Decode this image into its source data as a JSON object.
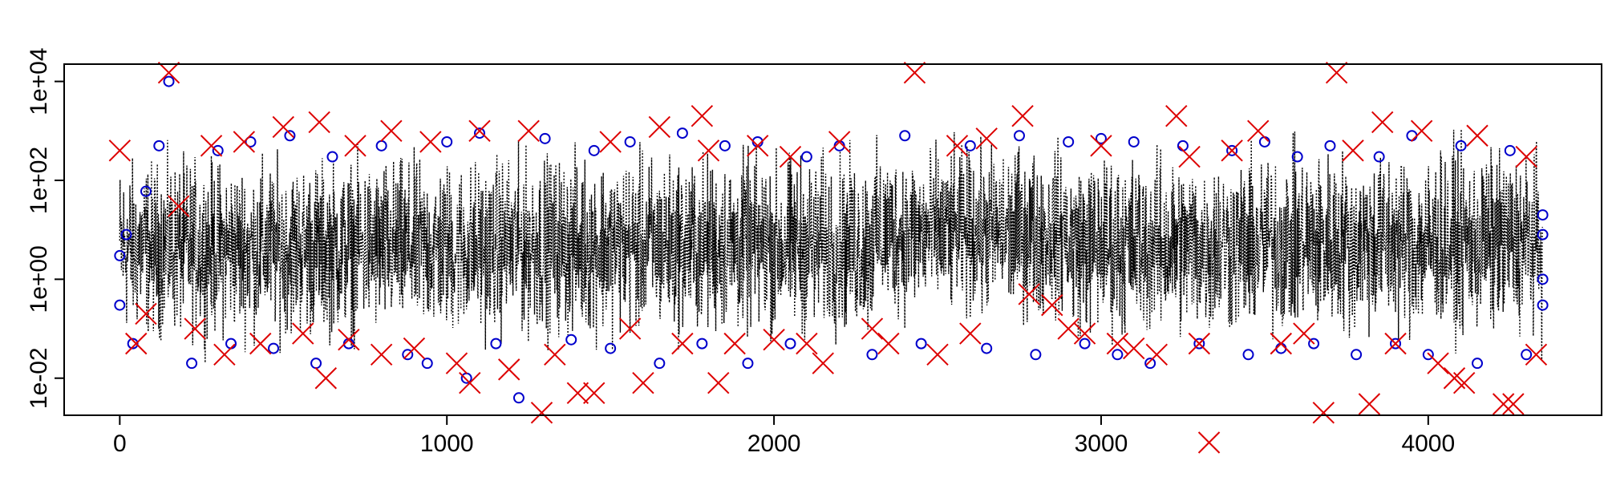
{
  "chart_data": {
    "type": "line",
    "title": "",
    "xlabel": "",
    "ylabel": "",
    "xlim": [
      -170,
      4530
    ],
    "ylim_log10": [
      -2.75,
      4.35
    ],
    "y_scale": "log",
    "grid": false,
    "legend": "none",
    "x_ticks": [
      0,
      1000,
      2000,
      3000,
      4000
    ],
    "x_tick_labels": [
      "0",
      "1000",
      "2000",
      "3000",
      "4000"
    ],
    "y_ticks": [
      0.01,
      1,
      100,
      10000
    ],
    "y_tick_labels": [
      "1e-02",
      "1e+00",
      "1e+02",
      "1e+04"
    ],
    "n_points": 4350,
    "series": [
      {
        "kind": "dotted-line",
        "color": "#000000",
        "description_segments": [
          {
            "x_range": [
              0,
              1150
            ],
            "typical_y_range": [
              0.02,
              900
            ]
          },
          {
            "x_range": [
              1150,
              2300
            ],
            "typical_y_range": [
              0.02,
              1200
            ]
          },
          {
            "x_range": [
              2300,
              2900
            ],
            "typical_y_range": [
              0.05,
              1500
            ]
          },
          {
            "x_range": [
              2900,
              3500
            ],
            "typical_y_range": [
              0.02,
              1200
            ]
          },
          {
            "x_range": [
              3500,
              4350
            ],
            "typical_y_range": [
              0.02,
              1500
            ]
          }
        ]
      },
      {
        "kind": "circle-markers",
        "color": "#0000cc",
        "points": [
          [
            0,
            3
          ],
          [
            0,
            0.3
          ],
          [
            20,
            8
          ],
          [
            40,
            0.05
          ],
          [
            80,
            60
          ],
          [
            120,
            500
          ],
          [
            150,
            10000
          ],
          [
            220,
            0.02
          ],
          [
            300,
            400
          ],
          [
            340,
            0.05
          ],
          [
            400,
            600
          ],
          [
            470,
            0.04
          ],
          [
            520,
            800
          ],
          [
            600,
            0.02
          ],
          [
            650,
            300
          ],
          [
            700,
            0.05
          ],
          [
            800,
            500
          ],
          [
            880,
            0.03
          ],
          [
            940,
            0.02
          ],
          [
            1000,
            600
          ],
          [
            1060,
            0.01
          ],
          [
            1100,
            900
          ],
          [
            1150,
            0.05
          ],
          [
            1220,
            0.004
          ],
          [
            1300,
            700
          ],
          [
            1380,
            0.06
          ],
          [
            1450,
            400
          ],
          [
            1500,
            0.04
          ],
          [
            1560,
            600
          ],
          [
            1650,
            0.02
          ],
          [
            1720,
            900
          ],
          [
            1780,
            0.05
          ],
          [
            1850,
            500
          ],
          [
            1920,
            0.02
          ],
          [
            1950,
            600
          ],
          [
            2050,
            0.05
          ],
          [
            2100,
            300
          ],
          [
            2200,
            500
          ],
          [
            2300,
            0.03
          ],
          [
            2400,
            800
          ],
          [
            2450,
            0.05
          ],
          [
            2600,
            500
          ],
          [
            2650,
            0.04
          ],
          [
            2750,
            800
          ],
          [
            2800,
            0.03
          ],
          [
            2900,
            600
          ],
          [
            2950,
            0.05
          ],
          [
            3000,
            700
          ],
          [
            3050,
            0.03
          ],
          [
            3100,
            600
          ],
          [
            3150,
            0.02
          ],
          [
            3250,
            500
          ],
          [
            3300,
            0.05
          ],
          [
            3400,
            400
          ],
          [
            3450,
            0.03
          ],
          [
            3500,
            600
          ],
          [
            3550,
            0.04
          ],
          [
            3600,
            300
          ],
          [
            3650,
            0.05
          ],
          [
            3700,
            500
          ],
          [
            3780,
            0.03
          ],
          [
            3850,
            300
          ],
          [
            3900,
            0.05
          ],
          [
            3950,
            800
          ],
          [
            4000,
            0.03
          ],
          [
            4100,
            500
          ],
          [
            4150,
            0.02
          ],
          [
            4250,
            400
          ],
          [
            4300,
            0.03
          ],
          [
            4350,
            8
          ],
          [
            4350,
            1
          ],
          [
            4350,
            20
          ],
          [
            4350,
            0.3
          ]
        ]
      },
      {
        "kind": "x-markers",
        "color": "#dd0000",
        "points": [
          [
            0,
            400
          ],
          [
            50,
            0.05
          ],
          [
            80,
            0.2
          ],
          [
            150,
            15000
          ],
          [
            180,
            30
          ],
          [
            230,
            0.1
          ],
          [
            280,
            500
          ],
          [
            320,
            0.03
          ],
          [
            380,
            600
          ],
          [
            430,
            0.05
          ],
          [
            500,
            1200
          ],
          [
            560,
            0.08
          ],
          [
            610,
            1500
          ],
          [
            630,
            0.01
          ],
          [
            700,
            0.06
          ],
          [
            720,
            500
          ],
          [
            800,
            0.03
          ],
          [
            830,
            1000
          ],
          [
            900,
            0.04
          ],
          [
            950,
            600
          ],
          [
            1030,
            0.02
          ],
          [
            1070,
            0.008
          ],
          [
            1100,
            1000
          ],
          [
            1190,
            0.015
          ],
          [
            1250,
            1000
          ],
          [
            1290,
            0.002
          ],
          [
            1330,
            0.03
          ],
          [
            1400,
            0.005
          ],
          [
            1450,
            0.005
          ],
          [
            1500,
            600
          ],
          [
            1560,
            0.1
          ],
          [
            1600,
            0.008
          ],
          [
            1650,
            1200
          ],
          [
            1720,
            0.05
          ],
          [
            1780,
            2000
          ],
          [
            1800,
            400
          ],
          [
            1830,
            0.008
          ],
          [
            1880,
            0.05
          ],
          [
            1950,
            500
          ],
          [
            2000,
            0.06
          ],
          [
            2050,
            300
          ],
          [
            2100,
            0.05
          ],
          [
            2150,
            0.02
          ],
          [
            2200,
            600
          ],
          [
            2300,
            0.1
          ],
          [
            2350,
            0.05
          ],
          [
            2430,
            15000
          ],
          [
            2500,
            0.03
          ],
          [
            2560,
            500
          ],
          [
            2600,
            0.08
          ],
          [
            2650,
            700
          ],
          [
            2760,
            2000
          ],
          [
            2780,
            0.5
          ],
          [
            2850,
            0.3
          ],
          [
            2900,
            0.1
          ],
          [
            2950,
            0.08
          ],
          [
            3000,
            500
          ],
          [
            3050,
            0.05
          ],
          [
            3100,
            0.04
          ],
          [
            3170,
            0.03
          ],
          [
            3230,
            2000
          ],
          [
            3270,
            300
          ],
          [
            3300,
            0.05
          ],
          [
            3330,
            0.0005
          ],
          [
            3400,
            400
          ],
          [
            3480,
            1000
          ],
          [
            3550,
            0.05
          ],
          [
            3620,
            0.08
          ],
          [
            3680,
            0.002
          ],
          [
            3720,
            15000
          ],
          [
            3770,
            400
          ],
          [
            3820,
            0.003
          ],
          [
            3860,
            1500
          ],
          [
            3900,
            0.05
          ],
          [
            3980,
            1000
          ],
          [
            4030,
            0.02
          ],
          [
            4080,
            0.01
          ],
          [
            4110,
            0.008
          ],
          [
            4150,
            800
          ],
          [
            4230,
            0.003
          ],
          [
            4260,
            0.003
          ],
          [
            4300,
            300
          ],
          [
            4330,
            0.03
          ]
        ]
      }
    ]
  }
}
